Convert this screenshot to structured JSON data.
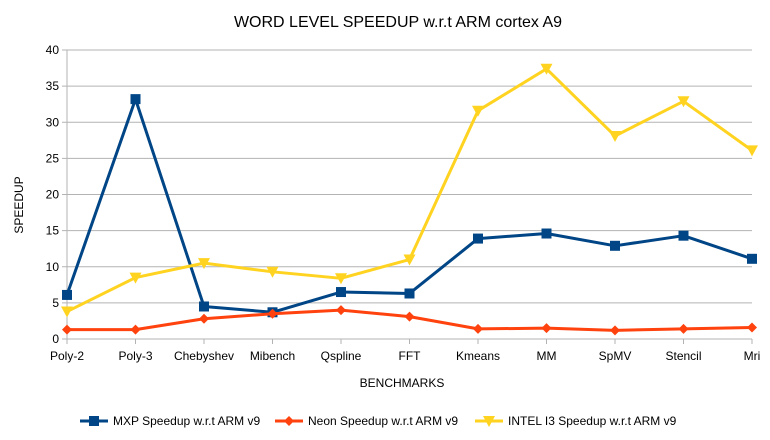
{
  "chart_data": {
    "type": "line",
    "title": "WORD LEVEL SPEEDUP w.r.t ARM cortex A9",
    "xlabel": "BENCHMARKS",
    "ylabel": "SPEEDUP",
    "ylim": [
      0,
      40
    ],
    "yticks": [
      0,
      5,
      10,
      15,
      20,
      25,
      30,
      35,
      40
    ],
    "grid": true,
    "legend_position": "bottom",
    "categories": [
      "Poly-2",
      "Poly-3",
      "Chebyshev",
      "Mibench",
      "Qspline",
      "FFT",
      "Kmeans",
      "MM",
      "SpMV",
      "Stencil",
      "Mri"
    ],
    "series": [
      {
        "name": "MXP Speedup w.r.t ARM v9",
        "color": "#004586",
        "marker": "square",
        "values": [
          6.1,
          33.2,
          4.5,
          3.7,
          6.5,
          6.3,
          13.9,
          14.6,
          12.9,
          14.3,
          11.1
        ]
      },
      {
        "name": "Neon Speedup w.r.t  ARM v9",
        "color": "#ff420e",
        "marker": "diamond",
        "values": [
          1.3,
          1.3,
          2.8,
          3.5,
          4.0,
          3.1,
          1.4,
          1.5,
          1.2,
          1.4,
          1.6
        ]
      },
      {
        "name": "INTEL I3 Speedup w.r.t  ARM v9",
        "color": "#ffd320",
        "marker": "triangle-down",
        "values": [
          3.8,
          8.5,
          10.5,
          9.3,
          8.4,
          11.0,
          31.6,
          37.4,
          28.1,
          32.9,
          26.1
        ]
      }
    ]
  }
}
